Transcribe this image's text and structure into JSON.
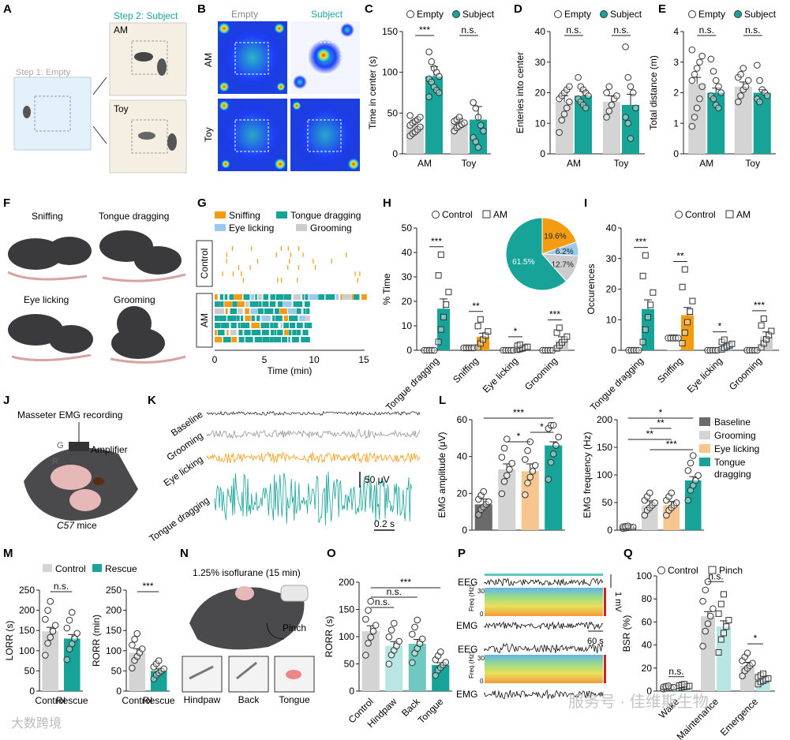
{
  "panel_letters": [
    "A",
    "B",
    "C",
    "D",
    "E",
    "F",
    "G",
    "H",
    "I",
    "J",
    "K",
    "L",
    "M",
    "N",
    "O",
    "P",
    "Q"
  ],
  "legend": {
    "empty": "Empty",
    "subject": "Subject",
    "control": "Control",
    "am": "AM",
    "rescue": "Rescue",
    "pinch": "Pinch"
  },
  "panelA": {
    "step1": "Step 1: Empty",
    "step2": "Step 2: Subject",
    "am": "AM",
    "toy": "Toy"
  },
  "panelB": {
    "empty": "Empty",
    "subject": "Subject",
    "am": "AM",
    "toy": "Toy"
  },
  "panelF": {
    "sniffing": "Sniffing",
    "tongue": "Tongue dragging",
    "eye": "Eye licking",
    "grooming": "Grooming"
  },
  "panelG": {
    "legend": [
      "Sniffing",
      "Tongue dragging",
      "Eye licking",
      "Grooming"
    ],
    "control": "Control",
    "am": "AM",
    "xlabel": "Time (min)",
    "ticks": [
      "0",
      "5",
      "10",
      "15"
    ]
  },
  "panelH": {
    "pie": [
      "19.6%",
      "6.2%",
      "12.7%",
      "61.5%"
    ]
  },
  "panelJ": {
    "title": "Masseter EMG recording",
    "amp": "Amplifier",
    "g": "G",
    "r": "R",
    "mice": "C57 mice",
    "mice_italic": "C57",
    "mice_rest": " mice"
  },
  "panelK": {
    "rows": [
      "Baseline",
      "Grooming",
      "Eye licking",
      "Tongue dragging"
    ],
    "vscale": "50 μV",
    "hscale": "0.2 s"
  },
  "panelL": {
    "legend": [
      "Baseline",
      "Grooming",
      "Eye licking",
      "Tongue",
      "dragging"
    ]
  },
  "panelN": {
    "title": "1.25% isoflurane (15 min)",
    "pinch": "Pinch",
    "insets": [
      "Hindpaw",
      "Back",
      "Tongue"
    ]
  },
  "panelP": {
    "eeg": "EEG",
    "emg": "EMG",
    "freq": "Freq (Hz)",
    "f30": "30",
    "f0": "0",
    "mv": "1 mV",
    "sec": "60 s"
  },
  "watermark": {
    "left": "大数跨境",
    "right": "服务号 · 佳维斯生物"
  },
  "chart_data": [
    {
      "id": "C",
      "type": "bar",
      "ylabel": "Time in center (s)",
      "ylim": [
        0,
        150
      ],
      "yticks": [
        "0",
        "50",
        "100",
        "150"
      ],
      "categories": [
        "AM",
        "Toy"
      ],
      "series": [
        {
          "name": "Empty",
          "values": [
            35,
            38
          ]
        },
        {
          "name": "Subject",
          "values": [
            95,
            42
          ]
        }
      ],
      "errors": [
        [
          5,
          5
        ],
        [
          12,
          16
        ]
      ],
      "points": [
        [
          [
            22,
            25,
            27,
            30,
            33,
            35,
            38,
            40,
            42,
            45,
            47
          ],
          [
            28,
            32,
            34,
            36,
            38,
            40,
            42,
            45
          ]
        ],
        [
          [
            125,
            113,
            105,
            100,
            95,
            92,
            88,
            82,
            78,
            75,
            70
          ],
          [
            63,
            56,
            45,
            35,
            28,
            20,
            15,
            8
          ]
        ]
      ],
      "sig": [
        "***",
        "n.s."
      ]
    },
    {
      "id": "D",
      "type": "bar",
      "ylabel": "Enteries into center",
      "ylim": [
        0,
        40
      ],
      "yticks": [
        "0",
        "10",
        "20",
        "30",
        "40"
      ],
      "categories": [
        "AM",
        "Toy"
      ],
      "series": [
        {
          "name": "Empty",
          "values": [
            17,
            17
          ]
        },
        {
          "name": "Subject",
          "values": [
            19,
            16
          ]
        }
      ],
      "errors": [
        [
          2,
          2
        ],
        [
          1.5,
          3.5
        ]
      ],
      "points": [
        [
          [
            7,
            11,
            13,
            15,
            17,
            18,
            19,
            20,
            21,
            22
          ],
          [
            12,
            14,
            16,
            18,
            19,
            20,
            22
          ]
        ],
        [
          [
            25,
            22,
            21,
            20,
            19,
            18,
            17,
            16,
            15
          ],
          [
            35,
            25,
            22,
            20,
            15,
            12,
            10,
            5
          ]
        ]
      ],
      "sig": [
        "n.s.",
        "n.s."
      ]
    },
    {
      "id": "E",
      "type": "bar",
      "ylabel": "Total distance (m)",
      "ylim": [
        0,
        4
      ],
      "yticks": [
        "0",
        "1",
        "2",
        "3",
        "4"
      ],
      "categories": [
        "AM",
        "Toy"
      ],
      "series": [
        {
          "name": "Empty",
          "values": [
            2.3,
            2.2
          ]
        },
        {
          "name": "Subject",
          "values": [
            2.0,
            2.0
          ]
        }
      ],
      "errors": [
        [
          0.2,
          0.15
        ],
        [
          0.15,
          0.1
        ]
      ],
      "points": [
        [
          [
            0.9,
            1.2,
            1.5,
            1.8,
            2.2,
            2.4,
            2.6,
            2.8,
            3.0,
            3.2,
            3.4
          ],
          [
            1.7,
            1.9,
            2.1,
            2.2,
            2.4,
            2.5,
            2.6,
            2.8
          ]
        ],
        [
          [
            3.1,
            2.7,
            2.4,
            2.2,
            2.0,
            1.9,
            1.8,
            1.6,
            1.5
          ],
          [
            2.9,
            2.4,
            2.1,
            2.0,
            1.9,
            1.8,
            1.7
          ]
        ]
      ],
      "sig": [
        "n.s.",
        "n.s."
      ]
    },
    {
      "id": "H",
      "type": "bar",
      "ylabel": "% Time",
      "ylim": [
        0,
        50
      ],
      "yticks": [
        "0",
        "10",
        "20",
        "30",
        "40",
        "50"
      ],
      "categories": [
        "Tongue dragging",
        "Sniffing",
        "Eye licking",
        "Grooming"
      ],
      "series": [
        {
          "name": "Control",
          "values": [
            0,
            1,
            0,
            0
          ]
        },
        {
          "name": "AM",
          "values": [
            17,
            5.5,
            1,
            4
          ]
        }
      ],
      "errors": [
        [
          0,
          0.3,
          0,
          0
        ],
        [
          4,
          1.5,
          0.5,
          1.5
        ]
      ],
      "sig": [
        "***",
        "**",
        "*",
        "***"
      ],
      "pie": {
        "labels": [
          "Sniffing",
          "Eye licking",
          "Grooming",
          "Tongue dragging"
        ],
        "values": [
          19.6,
          6.2,
          12.7,
          61.5
        ]
      }
    },
    {
      "id": "I",
      "type": "bar",
      "ylabel": "Occurences",
      "ylim": [
        0,
        40
      ],
      "yticks": [
        "0",
        "10",
        "20",
        "30",
        "40"
      ],
      "categories": [
        "Tongue dragging",
        "Sniffing",
        "Eye licking",
        "Grooming"
      ],
      "series": [
        {
          "name": "Control",
          "values": [
            0,
            4,
            0,
            0
          ]
        },
        {
          "name": "AM",
          "values": [
            13.5,
            11.5,
            1.5,
            4.5
          ]
        }
      ],
      "errors": [
        [
          0,
          1,
          0,
          0
        ],
        [
          3,
          2.5,
          0.6,
          1.5
        ]
      ],
      "sig": [
        "***",
        "**",
        "*",
        "***"
      ]
    },
    {
      "id": "L1",
      "type": "bar",
      "ylabel": "EMG amplitude (μV)",
      "ylim": [
        0,
        60
      ],
      "yticks": [
        "0",
        "20",
        "40",
        "60"
      ],
      "categories": [
        "Baseline",
        "Grooming",
        "Eye licking",
        "Tongue dragging"
      ],
      "values": [
        14,
        33,
        32,
        46
      ],
      "errors": [
        3,
        3,
        4,
        2
      ],
      "sig": [
        "*",
        "***",
        "*"
      ]
    },
    {
      "id": "L2",
      "type": "bar",
      "ylabel": "EMG frequency (Hz)",
      "ylim": [
        0,
        200
      ],
      "yticks": [
        "0",
        "50",
        "100",
        "150",
        "200"
      ],
      "categories": [
        "Baseline",
        "Grooming",
        "Eye licking",
        "Tongue dragging"
      ],
      "values": [
        5,
        45,
        45,
        90
      ],
      "errors": [
        2,
        8,
        7,
        7
      ],
      "sig": [
        "**",
        "*",
        "**",
        "***"
      ]
    },
    {
      "id": "M1",
      "type": "bar",
      "ylabel": "LORR (s)",
      "ylim": [
        0,
        250
      ],
      "yticks": [
        "0",
        "50",
        "100",
        "150",
        "200",
        "250"
      ],
      "categories": [
        "Control",
        "Rescue"
      ],
      "values": [
        148,
        130
      ],
      "errors": [
        10,
        10
      ],
      "sig": [
        "n.s."
      ]
    },
    {
      "id": "M2",
      "type": "bar",
      "ylabel": "RORR (min)",
      "ylim": [
        0,
        250
      ],
      "yticks": [
        "0",
        "50",
        "100",
        "150",
        "200",
        "250"
      ],
      "categories": [
        "Control",
        "Rescue"
      ],
      "values": [
        95,
        50
      ],
      "errors": [
        10,
        5
      ],
      "sig": [
        "***"
      ]
    },
    {
      "id": "O",
      "type": "bar",
      "ylabel": "RORR (s)",
      "ylim": [
        0,
        200
      ],
      "yticks": [
        "0",
        "50",
        "100",
        "150",
        "200"
      ],
      "categories": [
        "Control",
        "Hindpaw",
        "Back",
        "Tongue"
      ],
      "values": [
        110,
        83,
        87,
        48
      ],
      "errors": [
        10,
        8,
        8,
        4
      ],
      "sig": [
        "***",
        "n.s.",
        "n.s."
      ]
    },
    {
      "id": "Q",
      "type": "bar",
      "ylabel": "BSR (%)",
      "ylim": [
        0,
        100
      ],
      "yticks": [
        "0",
        "20",
        "40",
        "60",
        "80",
        "100"
      ],
      "categories": [
        "Wake",
        "Maintenance",
        "Emergence"
      ],
      "series": [
        {
          "name": "Control",
          "values": [
            3,
            65,
            22
          ]
        },
        {
          "name": "Pinch",
          "values": [
            4,
            56,
            10
          ]
        }
      ],
      "errors": [
        [
          1,
          4,
          3
        ],
        [
          1,
          5,
          3
        ]
      ],
      "sig": [
        "n.s.",
        "n.s.",
        "*"
      ]
    }
  ]
}
